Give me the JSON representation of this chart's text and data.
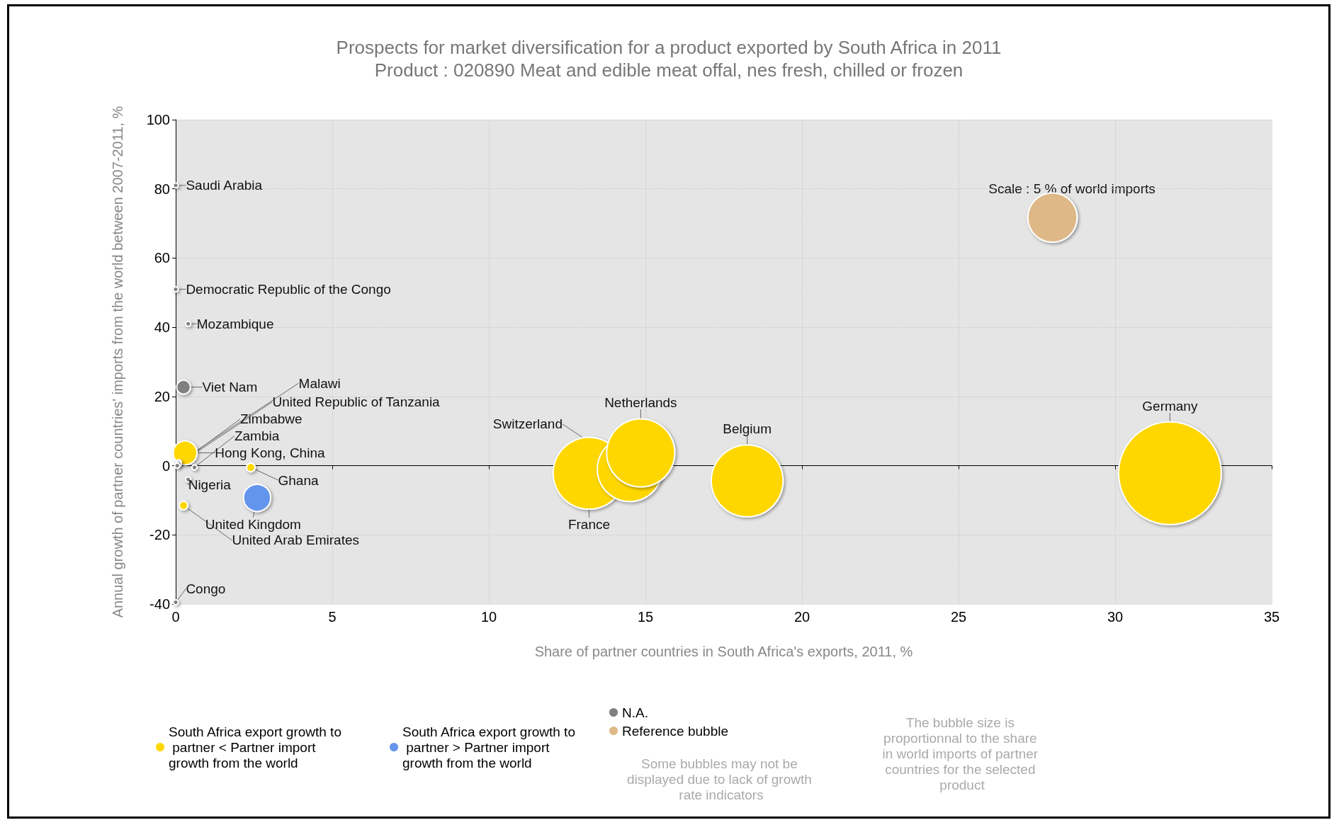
{
  "chart_data": {
    "type": "bubble",
    "title": "Prospects for market diversification for a product exported by South Africa in 2011",
    "subtitle": "Product : 020890 Meat and edible meat offal, nes fresh, chilled or frozen",
    "xlabel": "Share of partner countries in South Africa's exports, 2011, %",
    "ylabel": "Annual growth of partner countries' imports from the world between 2007-2011, %",
    "xlim": [
      0,
      35
    ],
    "xticks": [
      0,
      5,
      10,
      15,
      20,
      25,
      30,
      35
    ],
    "ylim": [
      -40,
      100
    ],
    "yticks": [
      -40,
      -20,
      0,
      20,
      40,
      60,
      80,
      100
    ],
    "grid": true,
    "legend": "bottom",
    "series": [
      {
        "name": "South Africa export growth to partner < Partner import growth from the world",
        "color": "#ffd700",
        "x": [
          0.3,
          2.4,
          0.25,
          13.2,
          14.5,
          14.85,
          18.25,
          31.75
        ],
        "values": [
          3.7,
          -0.5,
          -11.5,
          -2.2,
          -1,
          3.7,
          -4.4,
          -2.2
        ],
        "sizes": [
          0.054,
          0.007,
          0.007,
          0.49,
          0.4,
          0.44,
          0.49,
          1
        ],
        "value_labels": [
          "Hong Kong, China",
          "Ghana",
          "United Arab Emirates",
          "France",
          "Switzerland",
          "Netherlands",
          "Belgium",
          "Germany"
        ]
      },
      {
        "name": "South Africa export growth to partner > Partner import growth from the world",
        "color": "#6495ed",
        "x": [
          2.6
        ],
        "values": [
          -9.3
        ],
        "sizes": [
          0.07
        ],
        "value_labels": [
          "United Kingdom"
        ]
      },
      {
        "name": "N.A.",
        "color": "#808080",
        "x": [
          0,
          0,
          0.4,
          0.25,
          0.1,
          0.1,
          0.05,
          0.6,
          0.4,
          0
        ],
        "values": [
          81,
          51,
          41,
          22.7,
          1,
          0.5,
          0,
          -0.5,
          -4,
          -39.5
        ],
        "sizes": [
          0.0025,
          0.0025,
          0.0025,
          0.018,
          0.0025,
          0.0025,
          0.0025,
          0.0025,
          0.0025,
          0.0025
        ],
        "value_labels": [
          "Saudi Arabia",
          "Democratic Republic of the Congo",
          "Mozambique",
          "Viet Nam",
          "Malawi",
          "United Republic of Tanzania",
          "Zimbabwe",
          "Zambia",
          "Nigeria",
          "Congo"
        ]
      },
      {
        "name": "Reference bubble",
        "color": "#deb887",
        "x": [
          28
        ],
        "values": [
          71.7
        ],
        "sizes": [
          0.23
        ]
      }
    ],
    "annotations": [
      "Scale : 5 % of world imports",
      "Some bubbles may not be displayed due to lack of growth rate indicators",
      "The bubble size is proportionnal to the share in world imports of partner countries for the selected product"
    ]
  }
}
